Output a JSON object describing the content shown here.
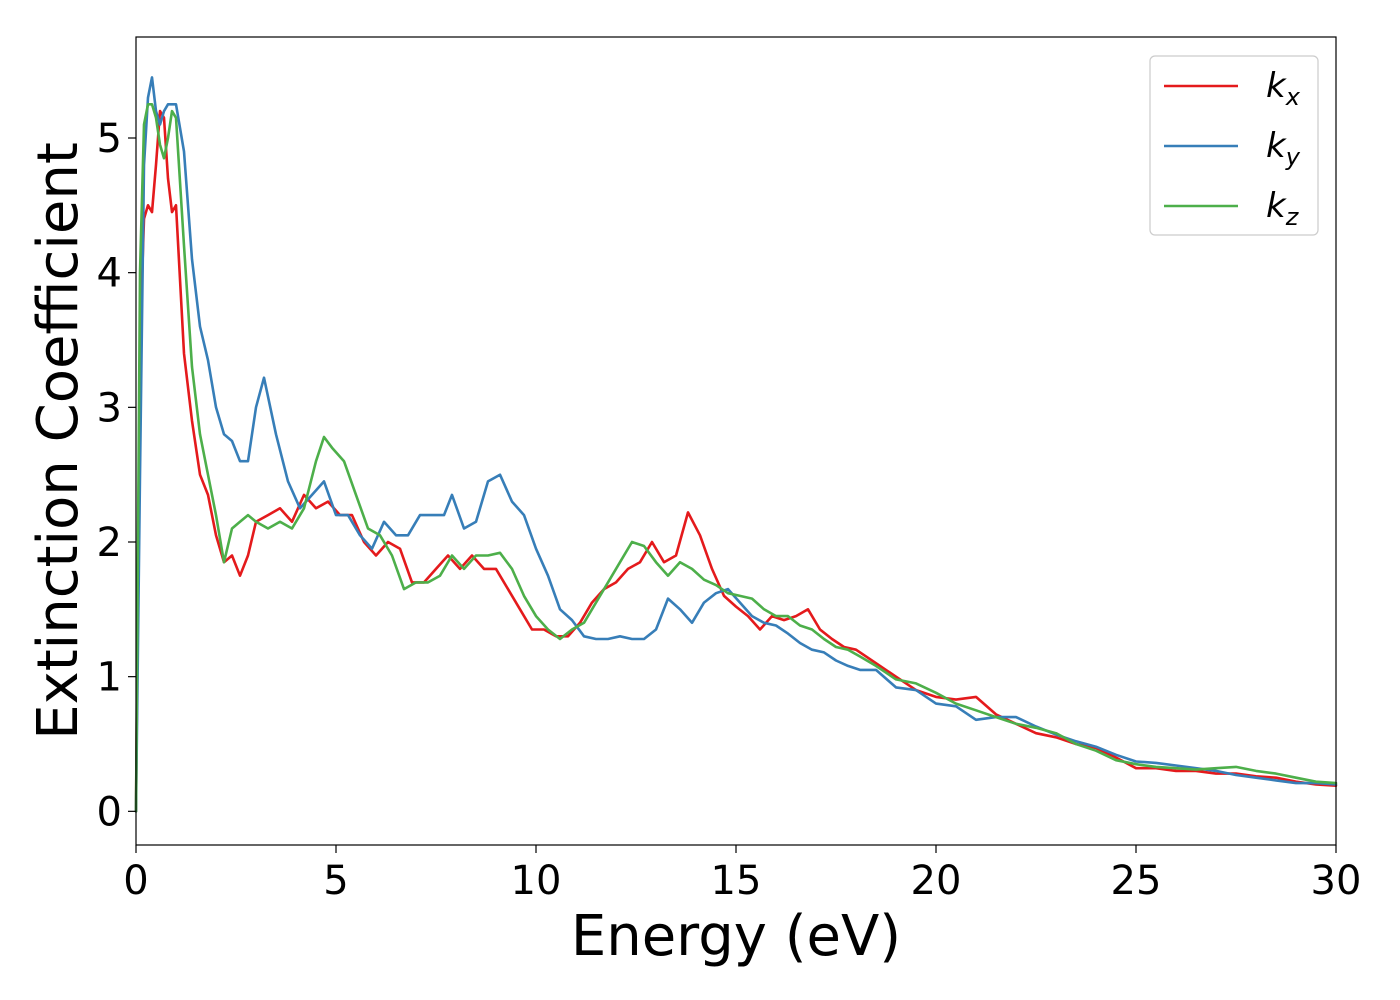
{
  "chart_data": {
    "type": "line",
    "xlabel": "Energy (eV)",
    "ylabel": "Extinction Coefficient",
    "xlim": [
      0,
      30
    ],
    "ylim": [
      -0.25,
      5.75
    ],
    "xticks": [
      "0",
      "5",
      "10",
      "15",
      "20",
      "25",
      "30"
    ],
    "yticks": [
      "0",
      "1",
      "2",
      "3",
      "4",
      "5"
    ],
    "grid": false,
    "legend_position": "top-right",
    "series": [
      {
        "name": "k",
        "subscript": "x",
        "color": "#e41a1c",
        "x": [
          0,
          0.1,
          0.2,
          0.3,
          0.4,
          0.5,
          0.6,
          0.7,
          0.8,
          0.9,
          1.0,
          1.2,
          1.4,
          1.6,
          1.8,
          2.0,
          2.2,
          2.4,
          2.6,
          2.8,
          3.0,
          3.3,
          3.6,
          3.9,
          4.2,
          4.5,
          4.8,
          5.1,
          5.4,
          5.7,
          6.0,
          6.3,
          6.6,
          6.9,
          7.2,
          7.5,
          7.8,
          8.1,
          8.4,
          8.7,
          9.0,
          9.3,
          9.6,
          9.9,
          10.2,
          10.5,
          10.8,
          11.1,
          11.4,
          11.7,
          12.0,
          12.3,
          12.6,
          12.9,
          13.2,
          13.5,
          13.8,
          14.1,
          14.4,
          14.7,
          15.0,
          15.3,
          15.6,
          15.9,
          16.2,
          16.5,
          16.8,
          17.1,
          17.4,
          17.7,
          18.0,
          18.5,
          19.0,
          19.5,
          20.0,
          20.5,
          21.0,
          21.5,
          22.0,
          22.5,
          23.0,
          23.5,
          24.0,
          24.5,
          25.0,
          25.5,
          26.0,
          26.5,
          27.0,
          27.5,
          28.0,
          28.5,
          29.0,
          29.5,
          30.0
        ],
        "y": [
          0,
          3.5,
          4.4,
          4.5,
          4.45,
          4.8,
          5.2,
          5.15,
          4.7,
          4.45,
          4.5,
          3.4,
          2.9,
          2.5,
          2.35,
          2.05,
          1.85,
          1.9,
          1.75,
          1.9,
          2.15,
          2.2,
          2.25,
          2.15,
          2.35,
          2.25,
          2.3,
          2.2,
          2.2,
          2.0,
          1.9,
          2.0,
          1.95,
          1.7,
          1.7,
          1.8,
          1.9,
          1.8,
          1.9,
          1.8,
          1.8,
          1.65,
          1.5,
          1.35,
          1.35,
          1.3,
          1.3,
          1.4,
          1.55,
          1.65,
          1.7,
          1.8,
          1.85,
          2.0,
          1.85,
          1.9,
          2.22,
          2.05,
          1.8,
          1.6,
          1.52,
          1.45,
          1.35,
          1.45,
          1.42,
          1.45,
          1.5,
          1.35,
          1.28,
          1.22,
          1.2,
          1.1,
          1.0,
          0.9,
          0.85,
          0.83,
          0.85,
          0.72,
          0.65,
          0.58,
          0.55,
          0.5,
          0.47,
          0.4,
          0.32,
          0.32,
          0.3,
          0.3,
          0.28,
          0.28,
          0.26,
          0.25,
          0.22,
          0.2,
          0.19
        ]
      },
      {
        "name": "k",
        "subscript": "y",
        "color": "#377eb8",
        "x": [
          0,
          0.1,
          0.2,
          0.3,
          0.4,
          0.5,
          0.6,
          0.7,
          0.8,
          0.9,
          1.0,
          1.2,
          1.4,
          1.6,
          1.8,
          2.0,
          2.2,
          2.4,
          2.6,
          2.8,
          3.0,
          3.2,
          3.5,
          3.8,
          4.1,
          4.4,
          4.7,
          5.0,
          5.3,
          5.6,
          5.9,
          6.2,
          6.5,
          6.8,
          7.1,
          7.4,
          7.7,
          7.9,
          8.2,
          8.5,
          8.8,
          9.1,
          9.4,
          9.7,
          10.0,
          10.3,
          10.6,
          10.9,
          11.2,
          11.5,
          11.8,
          12.1,
          12.4,
          12.7,
          13.0,
          13.3,
          13.6,
          13.9,
          14.2,
          14.5,
          14.8,
          15.1,
          15.4,
          15.7,
          16.0,
          16.3,
          16.6,
          16.9,
          17.2,
          17.5,
          17.8,
          18.1,
          18.5,
          19.0,
          19.5,
          20.0,
          20.5,
          21.0,
          21.5,
          22.0,
          22.5,
          23.0,
          23.5,
          24.0,
          24.5,
          25.0,
          25.5,
          26.0,
          26.5,
          27.0,
          27.5,
          28.0,
          28.5,
          29.0,
          29.5,
          30.0
        ],
        "y": [
          0,
          2.5,
          4.8,
          5.3,
          5.45,
          5.2,
          5.1,
          5.2,
          5.25,
          5.25,
          5.25,
          4.9,
          4.1,
          3.6,
          3.35,
          3.0,
          2.8,
          2.75,
          2.6,
          2.6,
          3.0,
          3.22,
          2.8,
          2.45,
          2.25,
          2.35,
          2.45,
          2.2,
          2.2,
          2.05,
          1.95,
          2.15,
          2.05,
          2.05,
          2.2,
          2.2,
          2.2,
          2.35,
          2.1,
          2.15,
          2.45,
          2.5,
          2.3,
          2.2,
          1.95,
          1.75,
          1.5,
          1.42,
          1.3,
          1.28,
          1.28,
          1.3,
          1.28,
          1.28,
          1.35,
          1.58,
          1.5,
          1.4,
          1.55,
          1.62,
          1.65,
          1.55,
          1.45,
          1.4,
          1.38,
          1.32,
          1.25,
          1.2,
          1.18,
          1.12,
          1.08,
          1.05,
          1.05,
          0.92,
          0.9,
          0.8,
          0.78,
          0.68,
          0.7,
          0.7,
          0.63,
          0.57,
          0.52,
          0.48,
          0.42,
          0.37,
          0.36,
          0.34,
          0.32,
          0.3,
          0.27,
          0.25,
          0.23,
          0.21,
          0.21,
          0.2
        ]
      },
      {
        "name": "k",
        "subscript": "z",
        "color": "#4daf4a",
        "x": [
          0,
          0.1,
          0.2,
          0.3,
          0.4,
          0.5,
          0.6,
          0.7,
          0.8,
          0.9,
          1.0,
          1.2,
          1.4,
          1.6,
          1.8,
          2.0,
          2.2,
          2.4,
          2.6,
          2.8,
          3.0,
          3.3,
          3.6,
          3.9,
          4.2,
          4.5,
          4.7,
          4.9,
          5.2,
          5.5,
          5.8,
          6.1,
          6.4,
          6.7,
          7.0,
          7.3,
          7.6,
          7.9,
          8.2,
          8.5,
          8.8,
          9.1,
          9.4,
          9.7,
          10.0,
          10.3,
          10.6,
          10.9,
          11.2,
          11.5,
          11.8,
          12.1,
          12.4,
          12.7,
          13.0,
          13.3,
          13.6,
          13.9,
          14.2,
          14.5,
          14.8,
          15.1,
          15.4,
          15.7,
          16.0,
          16.3,
          16.6,
          16.9,
          17.2,
          17.5,
          17.8,
          18.1,
          18.5,
          19.0,
          19.5,
          20.0,
          20.5,
          21.0,
          21.5,
          22.0,
          22.5,
          23.0,
          23.5,
          24.0,
          24.5,
          25.0,
          25.5,
          26.0,
          26.5,
          27.0,
          27.5,
          28.0,
          28.5,
          29.0,
          29.5,
          30.0
        ],
        "y": [
          0,
          4.0,
          5.1,
          5.25,
          5.25,
          5.15,
          4.95,
          4.85,
          5.0,
          5.2,
          5.15,
          4.2,
          3.3,
          2.8,
          2.5,
          2.2,
          1.85,
          2.1,
          2.15,
          2.2,
          2.15,
          2.1,
          2.15,
          2.1,
          2.25,
          2.6,
          2.78,
          2.7,
          2.6,
          2.35,
          2.1,
          2.05,
          1.9,
          1.65,
          1.7,
          1.7,
          1.75,
          1.9,
          1.8,
          1.9,
          1.9,
          1.92,
          1.8,
          1.6,
          1.45,
          1.35,
          1.28,
          1.35,
          1.4,
          1.55,
          1.7,
          1.85,
          2.0,
          1.97,
          1.85,
          1.75,
          1.85,
          1.8,
          1.72,
          1.68,
          1.62,
          1.6,
          1.58,
          1.5,
          1.45,
          1.45,
          1.38,
          1.35,
          1.28,
          1.22,
          1.2,
          1.15,
          1.08,
          0.98,
          0.95,
          0.88,
          0.8,
          0.75,
          0.7,
          0.65,
          0.62,
          0.58,
          0.5,
          0.45,
          0.38,
          0.35,
          0.33,
          0.32,
          0.31,
          0.32,
          0.33,
          0.3,
          0.28,
          0.25,
          0.22,
          0.21
        ]
      }
    ]
  }
}
